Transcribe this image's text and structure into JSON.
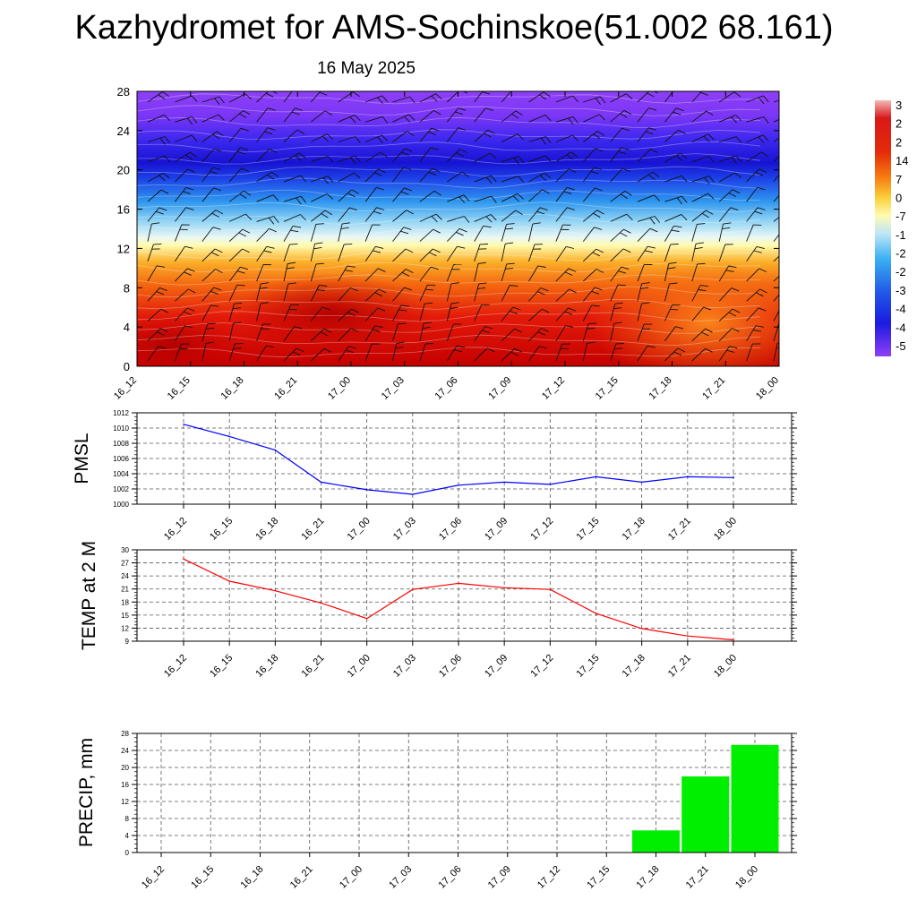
{
  "title": "Kazhydromet for AMS-Sochinskoe(51.002 68.161)",
  "subtitle": "16 May 2025",
  "chart_data": [
    {
      "type": "heatmap",
      "x_tick_labels": [
        "16_12",
        "16_15",
        "16_18",
        "16_21",
        "17_00",
        "17_03",
        "17_06",
        "17_09",
        "17_12",
        "17_15",
        "17_18",
        "17_21",
        "18_00"
      ],
      "y_ticks": [
        0,
        4,
        8,
        12,
        16,
        20,
        24,
        28
      ],
      "ylim": [
        0,
        28
      ],
      "colorbar_labels": [
        "3",
        "2",
        "2",
        "14",
        "7",
        "0",
        "-7",
        "-1",
        "-2",
        "-2",
        "-3",
        "-4",
        "-4",
        "-5"
      ],
      "colors": {
        "cold": "#8a2be2",
        "warm": "#c40000",
        "neutral": "#ffffc0"
      },
      "grid": false,
      "legend": "right"
    },
    {
      "type": "line",
      "ylabel": "PMSL",
      "categories": [
        "16_12",
        "16_15",
        "16_18",
        "16_21",
        "17_00",
        "17_03",
        "17_06",
        "17_09",
        "17_12",
        "17_15",
        "17_18",
        "17_21",
        "18_00"
      ],
      "values": [
        1010.5,
        1008.9,
        1007.1,
        1002.9,
        1001.9,
        1001.3,
        1002.5,
        1002.9,
        1002.6,
        1003.6,
        1002.9,
        1003.6,
        1003.5
      ],
      "y_ticks": [
        1000,
        1002,
        1004,
        1006,
        1008,
        1010,
        1012
      ],
      "ylim": [
        1000,
        1012
      ],
      "color": "#0000ff",
      "grid": true
    },
    {
      "type": "line",
      "ylabel": "TEMP at 2 M",
      "categories": [
        "16_12",
        "16_15",
        "16_18",
        "16_21",
        "17_00",
        "17_03",
        "17_06",
        "17_09",
        "17_12",
        "17_15",
        "17_18",
        "17_21",
        "18_00"
      ],
      "values": [
        27.9,
        22.8,
        20.6,
        17.8,
        14.2,
        20.9,
        22.3,
        21.3,
        20.9,
        15.4,
        11.9,
        10.2,
        9.3
      ],
      "y_ticks": [
        9,
        12,
        15,
        18,
        21,
        24,
        27,
        30
      ],
      "ylim": [
        9,
        30
      ],
      "color": "#ff0000",
      "grid": true
    },
    {
      "type": "bar",
      "ylabel": "PRECIP, mm",
      "categories": [
        "16_12",
        "16_15",
        "16_18",
        "16_21",
        "17_00",
        "17_03",
        "17_06",
        "17_09",
        "17_12",
        "17_15",
        "17_18",
        "17_21",
        "18_00"
      ],
      "values": [
        0,
        0,
        0,
        0,
        0,
        0,
        0,
        0,
        0,
        0,
        5.2,
        17.9,
        25.3
      ],
      "y_ticks": [
        0,
        4,
        8,
        12,
        16,
        20,
        24,
        28
      ],
      "ylim": [
        0,
        28
      ],
      "color": "#00ee00",
      "grid": true
    }
  ]
}
